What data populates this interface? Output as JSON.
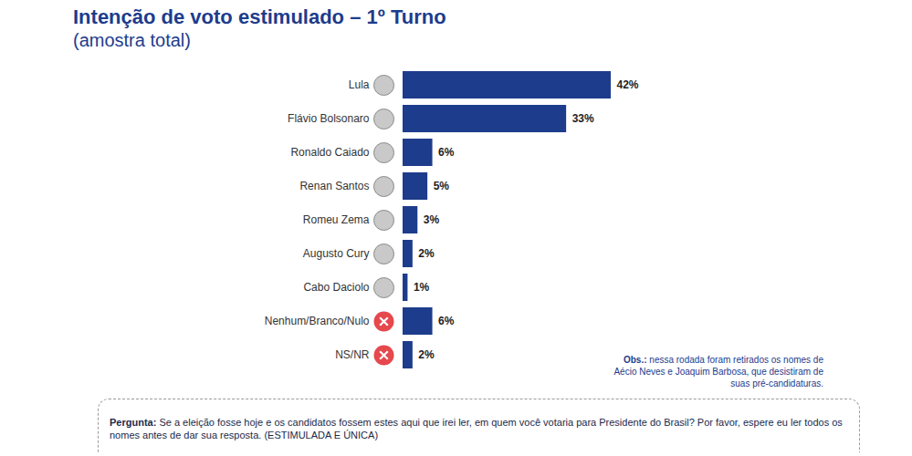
{
  "chart_data": {
    "type": "bar",
    "title": "Intenção de voto estimulado – 1º Turno",
    "subtitle": "(amostra total)",
    "orientation": "horizontal",
    "categories": [
      "Lula",
      "Flávio Bolsonaro",
      "Ronaldo Caiado",
      "Renan Santos",
      "Romeu Zema",
      "Augusto Cury",
      "Cabo Daciolo",
      "Nenhum/Branco/Nulo",
      "NS/NR"
    ],
    "values": [
      42,
      33,
      6,
      5,
      3,
      2,
      1,
      6,
      2
    ],
    "value_labels": [
      "42%",
      "33%",
      "6%",
      "5%",
      "3%",
      "2%",
      "1%",
      "6%",
      "2%"
    ],
    "color": "#1d3c8c",
    "xlim": [
      0,
      42
    ],
    "xticks": [],
    "tick_labels": "y",
    "data_labels": true,
    "grid": false,
    "note": {
      "label": "Obs.:",
      "text": "nessa rodada foram retirados os nomes de Aécio Neves e Joaquim Barbosa, que desistiram de suas pré-candidaturas."
    },
    "question": {
      "label": "Pergunta:",
      "text": "Se a eleição fosse hoje e os candidatos fossem estes aqui que irei ler, em quem você votaria para Presidente do Brasil? Por favor, espere eu ler todos os nomes antes de dar sua resposta. (ESTIMULADA E ÚNICA)"
    }
  }
}
